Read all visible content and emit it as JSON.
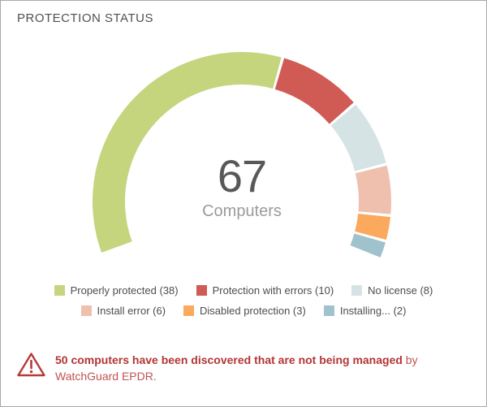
{
  "card": {
    "title": "PROTECTION STATUS"
  },
  "chart_data": {
    "type": "donut-gauge",
    "title": "PROTECTION STATUS",
    "center_value": "67",
    "center_label": "Computers",
    "total": 67,
    "start_angle_deg": 200,
    "end_angle_deg": -22,
    "legend_position": "bottom",
    "legend_rows": [
      [
        0,
        1,
        2
      ],
      [
        3,
        4,
        5
      ]
    ],
    "segments": [
      {
        "label": "Properly protected",
        "value": 38,
        "color": "#c4d57e"
      },
      {
        "label": "Protection with errors",
        "value": 10,
        "color": "#d05b55"
      },
      {
        "label": "No license",
        "value": 8,
        "color": "#d6e3e5"
      },
      {
        "label": "Install error",
        "value": 6,
        "color": "#eec0ad"
      },
      {
        "label": "Disabled protection",
        "value": 3,
        "color": "#fba95d"
      },
      {
        "label": "Installing...",
        "value": 2,
        "color": "#9fc2cc"
      }
    ]
  },
  "warning": {
    "line1_bold": "50 computers have been discovered that are not being managed",
    "line1_regular": "by",
    "line2": "WatchGuard EPDR.",
    "bold_color": "#b23535",
    "regular_color": "#c05351",
    "icon_color": "#b53a3a"
  }
}
